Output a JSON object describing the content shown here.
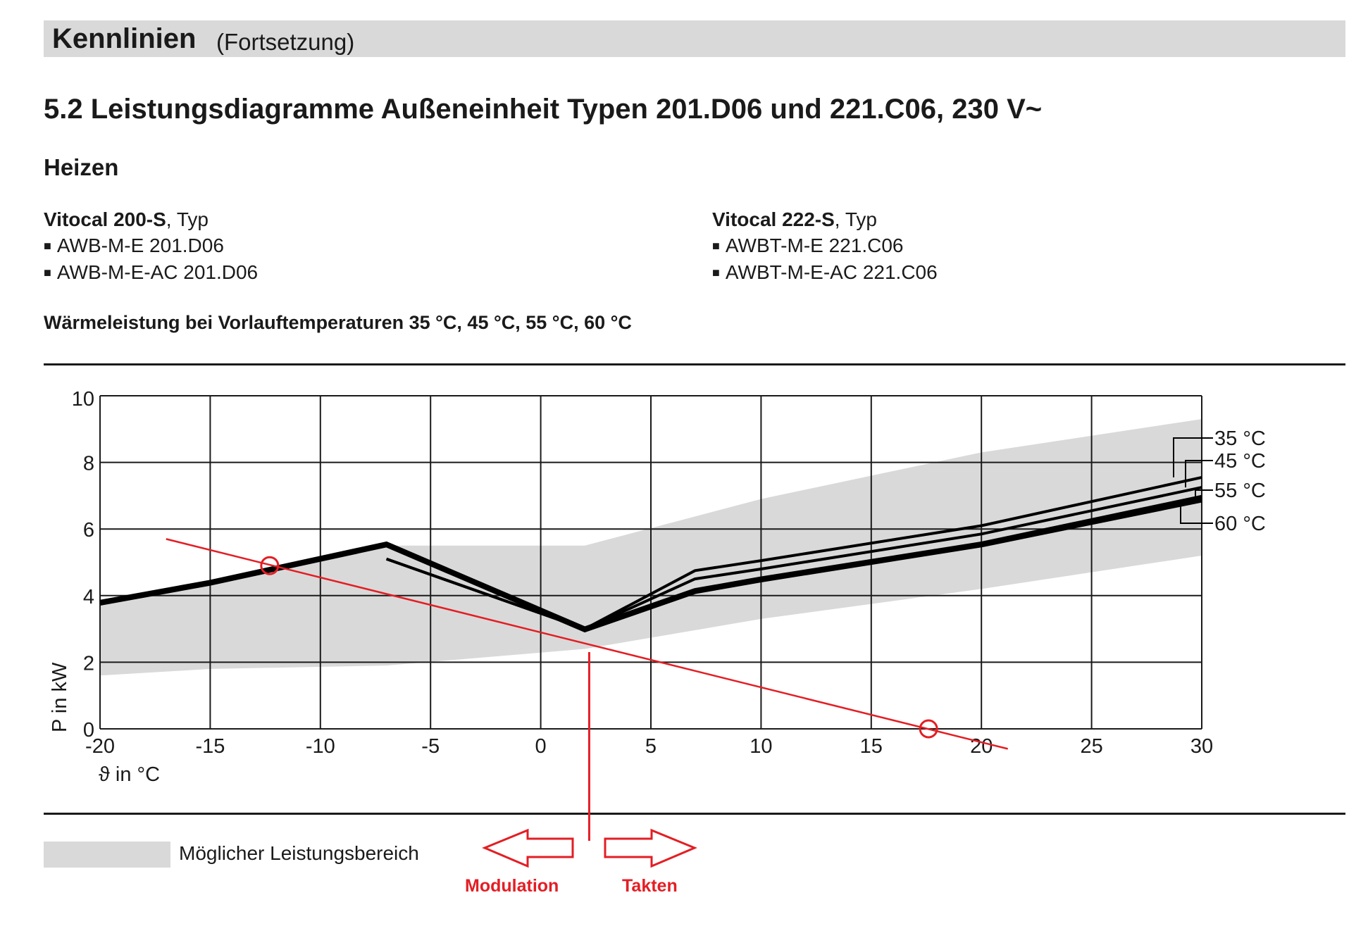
{
  "header": {
    "title": "Kennlinien",
    "subtitle": "(Fortsetzung)"
  },
  "section_title": "5.2 Leistungsdiagramme Außeneinheit Typen 201.D06 und 221.C06, 230 V~",
  "sub_heading": "Heizen",
  "models_left": {
    "name": "Vitocal 200-S",
    "suffix": ", Typ",
    "bullet": "■",
    "items": [
      "AWB-M-E 201.D06",
      "AWB-M-E-AC 201.D06"
    ]
  },
  "models_right": {
    "name": "Vitocal 222-S",
    "suffix": ", Typ",
    "bullet": "■",
    "items": [
      "AWBT-M-E 221.C06",
      "AWBT-M-E-AC 221.C06"
    ]
  },
  "caption": "Wärmeleistung bei Vorlauftemperaturen 35 °C, 45 °C, 55 °C, 60 °C",
  "legend": {
    "label": "Möglicher Leistungsbereich",
    "color": "#d9d9d9"
  },
  "annotations": {
    "left_label": "Modulation",
    "right_label": "Takten",
    "color": "#e31e24"
  },
  "chart_data": {
    "type": "line",
    "ylabel": "P in kW",
    "xlabel": "ϑ in °C",
    "xlim": [
      -20,
      30
    ],
    "ylim": [
      0,
      10
    ],
    "xticks": [
      -20,
      -15,
      -10,
      -5,
      0,
      5,
      10,
      15,
      20,
      25,
      30
    ],
    "yticks": [
      0,
      2,
      4,
      6,
      8,
      10
    ],
    "grid": true,
    "band": {
      "upper": [
        [
          -20,
          3.8
        ],
        [
          -7,
          5.5
        ],
        [
          2,
          5.5
        ],
        [
          10,
          6.9
        ],
        [
          20,
          8.3
        ],
        [
          30,
          9.3
        ]
      ],
      "lower": [
        [
          -20,
          1.6
        ],
        [
          -15,
          1.8
        ],
        [
          -7,
          1.9
        ],
        [
          2,
          2.4
        ],
        [
          10,
          3.3
        ],
        [
          20,
          4.2
        ],
        [
          30,
          5.2
        ]
      ]
    },
    "series": [
      {
        "name": "35 °C",
        "points": [
          [
            -7,
            5.1
          ],
          [
            2,
            3.0
          ],
          [
            7,
            4.75
          ],
          [
            10,
            5.05
          ],
          [
            20,
            6.1
          ],
          [
            30,
            7.55
          ]
        ]
      },
      {
        "name": "45 °C",
        "points": [
          [
            -7,
            5.1
          ],
          [
            2,
            3.0
          ],
          [
            7,
            4.5
          ],
          [
            10,
            4.8
          ],
          [
            20,
            5.85
          ],
          [
            30,
            7.25
          ]
        ]
      },
      {
        "name": "55 °C",
        "points": [
          [
            -20,
            3.8
          ],
          [
            -15,
            4.4
          ],
          [
            -7,
            5.55
          ],
          [
            2,
            3.0
          ],
          [
            7,
            4.15
          ],
          [
            10,
            4.5
          ],
          [
            20,
            5.55
          ],
          [
            30,
            6.95
          ]
        ]
      },
      {
        "name": "60 °C",
        "points": [
          [
            -20,
            3.75
          ],
          [
            -15,
            4.35
          ],
          [
            -7,
            5.5
          ],
          [
            2,
            2.95
          ],
          [
            7,
            4.1
          ],
          [
            10,
            4.45
          ],
          [
            20,
            5.5
          ],
          [
            30,
            6.85
          ]
        ]
      }
    ],
    "heating_curve": {
      "points": [
        [
          -17,
          5.7
        ],
        [
          21.2,
          -0.6
        ]
      ],
      "color": "#e31e24"
    },
    "markers": [
      [
        -12.3,
        4.9
      ],
      [
        17.6,
        0.0
      ]
    ],
    "balance_point_x": 2.2
  }
}
